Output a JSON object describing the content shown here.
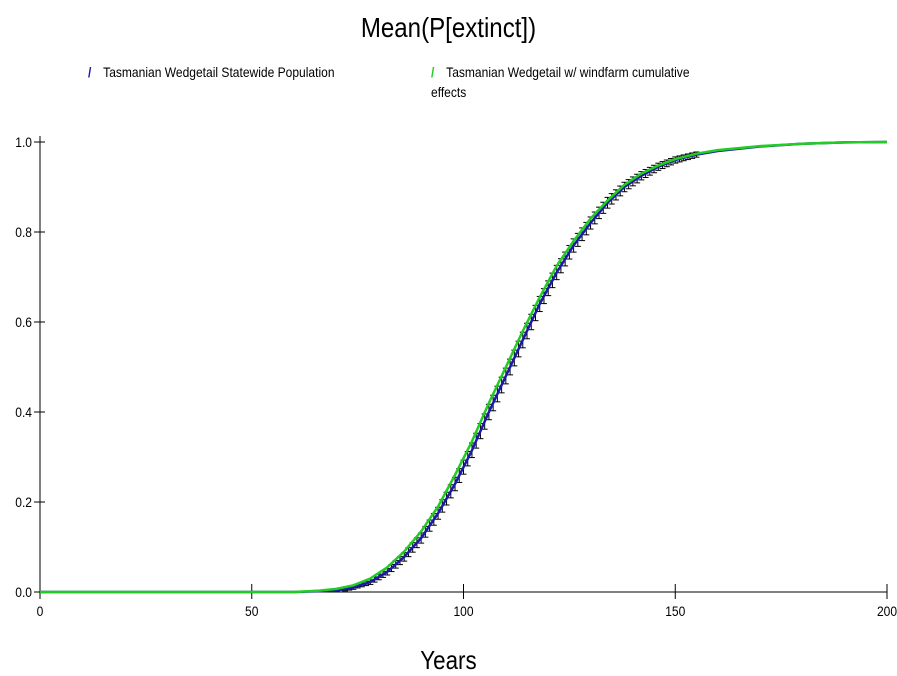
{
  "chart_data": {
    "type": "line",
    "title": "Mean(P[extinct])",
    "xlabel": "Years",
    "ylabel": "",
    "xlim": [
      0,
      200
    ],
    "ylim": [
      0,
      1
    ],
    "xticks": [
      "0",
      "50",
      "100",
      "150",
      "200"
    ],
    "yticks": [
      "0.0",
      "0.2",
      "0.4",
      "0.6",
      "0.8",
      "1.0"
    ],
    "grid": false,
    "legend_position": "top",
    "series": [
      {
        "name": "Tasmanian Wedgetail Statewide Population",
        "color": "#1a1aa6",
        "error_bars": true,
        "x": [
          0,
          60,
          70,
          74,
          78,
          82,
          86,
          90,
          94,
          98,
          102,
          106,
          110,
          114,
          118,
          122,
          126,
          130,
          134,
          138,
          142,
          146,
          150,
          155,
          160,
          170,
          180,
          190,
          200
        ],
        "values": [
          0,
          0,
          0.003,
          0.01,
          0.022,
          0.045,
          0.078,
          0.12,
          0.175,
          0.24,
          0.315,
          0.4,
          0.48,
          0.56,
          0.64,
          0.71,
          0.77,
          0.82,
          0.865,
          0.9,
          0.925,
          0.945,
          0.96,
          0.972,
          0.98,
          0.99,
          0.996,
          0.999,
          1.0
        ]
      },
      {
        "name": "Tasmanian Wedgetail w/ windfarm cumulative effects",
        "color": "#22cc22",
        "error_bars": false,
        "x": [
          0,
          60,
          66,
          70,
          74,
          78,
          82,
          86,
          90,
          94,
          98,
          102,
          106,
          110,
          114,
          118,
          122,
          126,
          130,
          134,
          138,
          142,
          146,
          150,
          155,
          160,
          170,
          180,
          190,
          200
        ],
        "values": [
          0,
          0,
          0.003,
          0.007,
          0.015,
          0.03,
          0.055,
          0.09,
          0.135,
          0.19,
          0.26,
          0.335,
          0.42,
          0.5,
          0.58,
          0.655,
          0.725,
          0.78,
          0.83,
          0.87,
          0.905,
          0.93,
          0.948,
          0.962,
          0.974,
          0.982,
          0.991,
          0.996,
          0.999,
          1.0
        ]
      }
    ]
  }
}
